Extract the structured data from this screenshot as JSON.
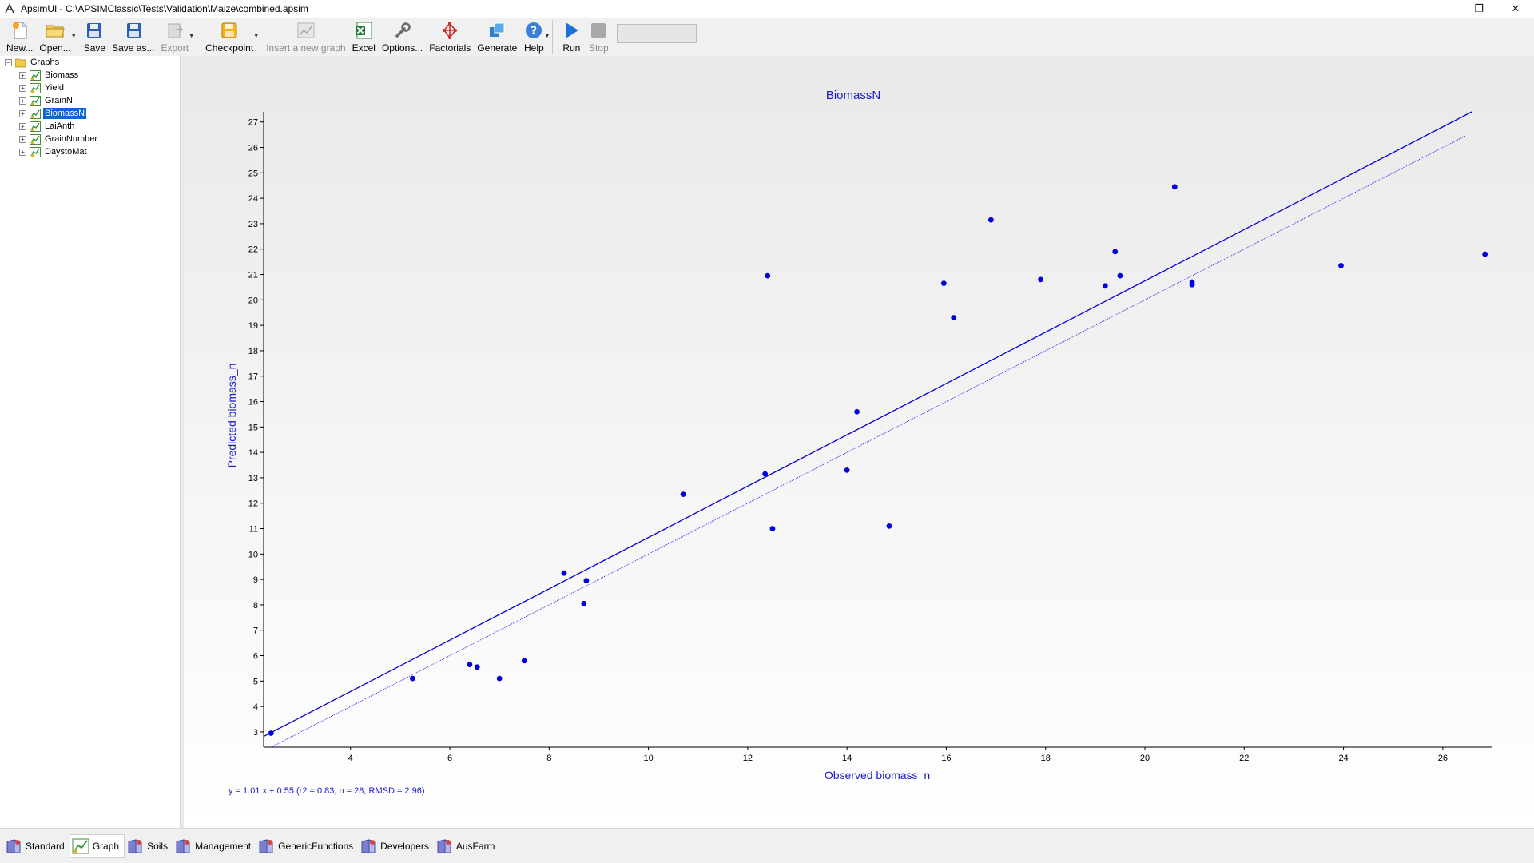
{
  "window": {
    "title": "ApsimUI - C:\\APSIMClassic\\Tests\\Validation\\Maize\\combined.apsim",
    "controls": [
      "—",
      "❐",
      "✕"
    ]
  },
  "toolbar": {
    "new_label": "New...",
    "open_label": "Open...",
    "save_label": "Save",
    "save_as_label": "Save as...",
    "export_label": "Export",
    "checkpoint_label": "Checkpoint",
    "insert_graph_label": "Insert a new graph",
    "excel_label": "Excel",
    "options_label": "Options...",
    "factorials_label": "Factorials",
    "generate_label": "Generate",
    "help_label": "Help",
    "run_label": "Run",
    "stop_label": "Stop"
  },
  "tree": {
    "root_label": "Graphs",
    "items": [
      {
        "label": "Biomass",
        "selected": false
      },
      {
        "label": "Yield",
        "selected": false
      },
      {
        "label": "GrainN",
        "selected": false
      },
      {
        "label": "BiomassN",
        "selected": true
      },
      {
        "label": "LaiAnth",
        "selected": false
      },
      {
        "label": "GrainNumber",
        "selected": false
      },
      {
        "label": "DaystoMat",
        "selected": false
      }
    ]
  },
  "bottom_tabs": [
    {
      "label": "Standard",
      "active": false
    },
    {
      "label": "Graph",
      "active": true
    },
    {
      "label": "Soils",
      "active": false
    },
    {
      "label": "Management",
      "active": false
    },
    {
      "label": "GenericFunctions",
      "active": false
    },
    {
      "label": "Developers",
      "active": false
    },
    {
      "label": "AusFarm",
      "active": false
    }
  ],
  "colors": {
    "series": "#0000dd",
    "axis_text": "#1a1acc"
  },
  "chart_data": {
    "type": "scatter",
    "title": "BiomassN",
    "xlabel": "Observed biomass_n",
    "ylabel": "Predicted biomass_n",
    "xlim": [
      2.25,
      27.0
    ],
    "ylim": [
      2.4,
      27.4
    ],
    "x_ticks": [
      4,
      6,
      8,
      10,
      12,
      14,
      16,
      18,
      20,
      22,
      24,
      26
    ],
    "y_ticks": [
      3,
      4,
      5,
      6,
      7,
      8,
      9,
      10,
      11,
      12,
      13,
      14,
      15,
      16,
      17,
      18,
      19,
      20,
      21,
      22,
      23,
      24,
      25,
      26,
      27
    ],
    "regression_text": "y = 1.01 x + 0.55 (r2 = 0.83, n = 28, RMSD = 2.96)",
    "regression": {
      "slope": 1.01,
      "intercept": 0.55
    },
    "one_to_one_line": true,
    "points": [
      {
        "x": 2.4,
        "y": 2.95
      },
      {
        "x": 5.25,
        "y": 5.1
      },
      {
        "x": 6.4,
        "y": 5.65
      },
      {
        "x": 6.55,
        "y": 5.55
      },
      {
        "x": 7.0,
        "y": 5.1
      },
      {
        "x": 7.5,
        "y": 5.8
      },
      {
        "x": 8.3,
        "y": 9.25
      },
      {
        "x": 8.7,
        "y": 8.05
      },
      {
        "x": 8.75,
        "y": 8.95
      },
      {
        "x": 10.7,
        "y": 12.35
      },
      {
        "x": 12.35,
        "y": 13.15
      },
      {
        "x": 12.4,
        "y": 20.95
      },
      {
        "x": 12.5,
        "y": 11.0
      },
      {
        "x": 14.0,
        "y": 13.3
      },
      {
        "x": 14.2,
        "y": 15.6
      },
      {
        "x": 14.85,
        "y": 11.1
      },
      {
        "x": 15.95,
        "y": 20.65
      },
      {
        "x": 16.15,
        "y": 19.3
      },
      {
        "x": 16.9,
        "y": 23.15
      },
      {
        "x": 17.9,
        "y": 20.8
      },
      {
        "x": 19.2,
        "y": 20.55
      },
      {
        "x": 19.4,
        "y": 21.9
      },
      {
        "x": 19.5,
        "y": 20.95
      },
      {
        "x": 20.6,
        "y": 24.45
      },
      {
        "x": 20.95,
        "y": 20.6
      },
      {
        "x": 20.95,
        "y": 20.7
      },
      {
        "x": 23.95,
        "y": 21.35
      },
      {
        "x": 26.85,
        "y": 21.8
      }
    ]
  }
}
